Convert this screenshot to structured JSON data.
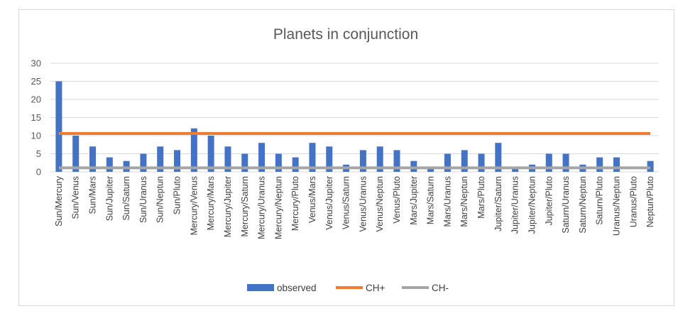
{
  "chart_data": {
    "type": "bar",
    "title": "Planets in conjunction",
    "xlabel": "",
    "ylabel": "",
    "ylim": [
      0,
      30
    ],
    "yticks": [
      0,
      5,
      10,
      15,
      20,
      25,
      30
    ],
    "grid": true,
    "legend_position": "bottom",
    "categories": [
      "Sun/Mercury",
      "Sun/Venus",
      "Sun/Mars",
      "Sun/Jupiter",
      "Sun/Saturn",
      "Sun/Uranus",
      "Sun/Neptun",
      "Sun/Pluto",
      "Mercury/Venus",
      "Mercury/Mars",
      "Mercury/Jupiter",
      "Mercury/Saturn",
      "Mercury/Uranus",
      "Mercury/Neptun",
      "Mercury/Pluto",
      "Venus/Mars",
      "Venus/Jupiter",
      "Venus/Saturn",
      "Venus/Uranus",
      "Venus/Neptun",
      "Venus/Pluto",
      "Mars/Jupiter",
      "Mars/Saturn",
      "Mars/Uranus",
      "Mars/Neptun",
      "Mars/Pluto",
      "Jupiter/Saturn",
      "Jupiter/Uranus",
      "Jupiter/Neptun",
      "Jupiter/Pluto",
      "Saturn/Uranus",
      "Saturn/Neptun",
      "Saturn/Pluto",
      "Uranus/Neptun",
      "Uranus/Pluto",
      "Neptun/Pluto"
    ],
    "series": [
      {
        "name": "observed",
        "kind": "bar",
        "color": "#4472c4",
        "values": [
          25,
          10,
          7,
          4,
          3,
          5,
          7,
          6,
          12,
          10,
          7,
          5,
          8,
          5,
          4,
          8,
          7,
          2,
          6,
          7,
          6,
          3,
          1,
          5,
          6,
          5,
          8,
          1,
          2,
          5,
          5,
          2,
          4,
          4,
          0,
          3
        ]
      },
      {
        "name": "CH+",
        "kind": "line",
        "color": "#ed7d31",
        "values": [
          10.6,
          10.6,
          10.6,
          10.6,
          10.6,
          10.6,
          10.6,
          10.6,
          10.6,
          10.6,
          10.6,
          10.6,
          10.6,
          10.6,
          10.6,
          10.6,
          10.6,
          10.6,
          10.6,
          10.6,
          10.6,
          10.6,
          10.6,
          10.6,
          10.6,
          10.6,
          10.6,
          10.6,
          10.6,
          10.6,
          10.6,
          10.6,
          10.6,
          10.6,
          10.6,
          10.6
        ]
      },
      {
        "name": "CH-",
        "kind": "line",
        "color": "#a5a5a5",
        "values": [
          1.1,
          1.1,
          1.1,
          1.1,
          1.1,
          1.1,
          1.1,
          1.1,
          1.1,
          1.1,
          1.1,
          1.1,
          1.1,
          1.1,
          1.1,
          1.1,
          1.1,
          1.1,
          1.1,
          1.1,
          1.1,
          1.1,
          1.1,
          1.1,
          1.1,
          1.1,
          1.1,
          1.1,
          1.1,
          1.1,
          1.1,
          1.1,
          1.1,
          1.1,
          1.1,
          1.1
        ]
      }
    ]
  }
}
